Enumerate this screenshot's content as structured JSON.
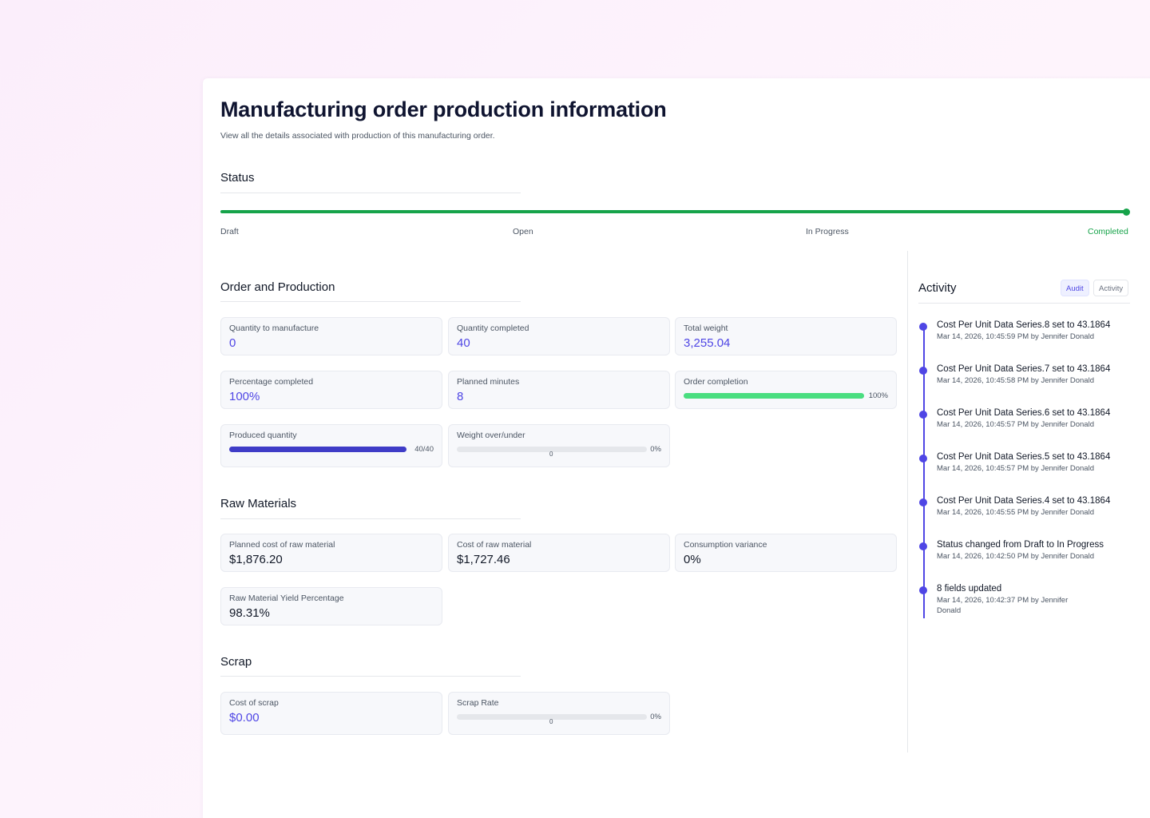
{
  "header": {
    "title": "Manufacturing order production information",
    "subtitle": "View all the details associated with production of this manufacturing order."
  },
  "status": {
    "title": "Status",
    "steps": [
      "Draft",
      "Open",
      "In Progress",
      "Completed"
    ],
    "current": "Completed",
    "color": "#16a34a"
  },
  "order_production": {
    "title": "Order and Production",
    "quantity_to_manufacture": {
      "label": "Quantity to manufacture",
      "value": "0"
    },
    "quantity_completed": {
      "label": "Quantity completed",
      "value": "40"
    },
    "total_weight": {
      "label": "Total weight",
      "value": "3,255.04"
    },
    "percentage_completed": {
      "label": "Percentage completed",
      "value": "100%"
    },
    "planned_minutes": {
      "label": "Planned minutes",
      "value": "8"
    },
    "order_completion": {
      "label": "Order completion",
      "value": "100%",
      "fraction": 1.0,
      "color": "#4ade80"
    },
    "produced_quantity": {
      "label": "Produced quantity",
      "value": "40/40",
      "fraction": 1.0,
      "color": "#3f3cc7"
    },
    "weight_over_under": {
      "label": "Weight over/under",
      "value": "0%",
      "marker": "0",
      "fraction": 0
    }
  },
  "raw_materials": {
    "title": "Raw Materials",
    "planned_cost": {
      "label": "Planned cost of raw material",
      "value": "$1,876.20"
    },
    "cost": {
      "label": "Cost of raw material",
      "value": "$1,727.46"
    },
    "consumption_variance": {
      "label": "Consumption variance",
      "value": "0%"
    },
    "yield_percentage": {
      "label": "Raw Material Yield Percentage",
      "value": "98.31%"
    }
  },
  "scrap": {
    "title": "Scrap",
    "cost_of_scrap": {
      "label": "Cost of scrap",
      "value": "$0.00"
    },
    "scrap_rate": {
      "label": "Scrap Rate",
      "value": "0%",
      "marker": "0",
      "fraction": 0
    }
  },
  "activity": {
    "title": "Activity",
    "tabs": [
      "Audit",
      "Activity"
    ],
    "active_tab": "Audit",
    "accent": "#4f46e5",
    "items": [
      {
        "title": "Cost Per Unit Data Series.8 set to 43.1864",
        "meta": "Mar 14, 2026, 10:45:59 PM by Jennifer Donald"
      },
      {
        "title": "Cost Per Unit Data Series.7 set to 43.1864",
        "meta": "Mar 14, 2026, 10:45:58 PM by Jennifer Donald"
      },
      {
        "title": "Cost Per Unit Data Series.6 set to 43.1864",
        "meta": "Mar 14, 2026, 10:45:57 PM by Jennifer Donald"
      },
      {
        "title": "Cost Per Unit Data Series.5 set to 43.1864",
        "meta": "Mar 14, 2026, 10:45:57 PM by Jennifer Donald"
      },
      {
        "title": "Cost Per Unit Data Series.4 set to 43.1864",
        "meta": "Mar 14, 2026, 10:45:55 PM by Jennifer Donald"
      },
      {
        "title": "Status changed from Draft to In Progress",
        "meta": "Mar 14, 2026, 10:42:50 PM by Jennifer Donald"
      },
      {
        "title": "8 fields updated",
        "meta": "Mar 14, 2026, 10:42:37 PM by Jennifer Donald"
      }
    ]
  }
}
